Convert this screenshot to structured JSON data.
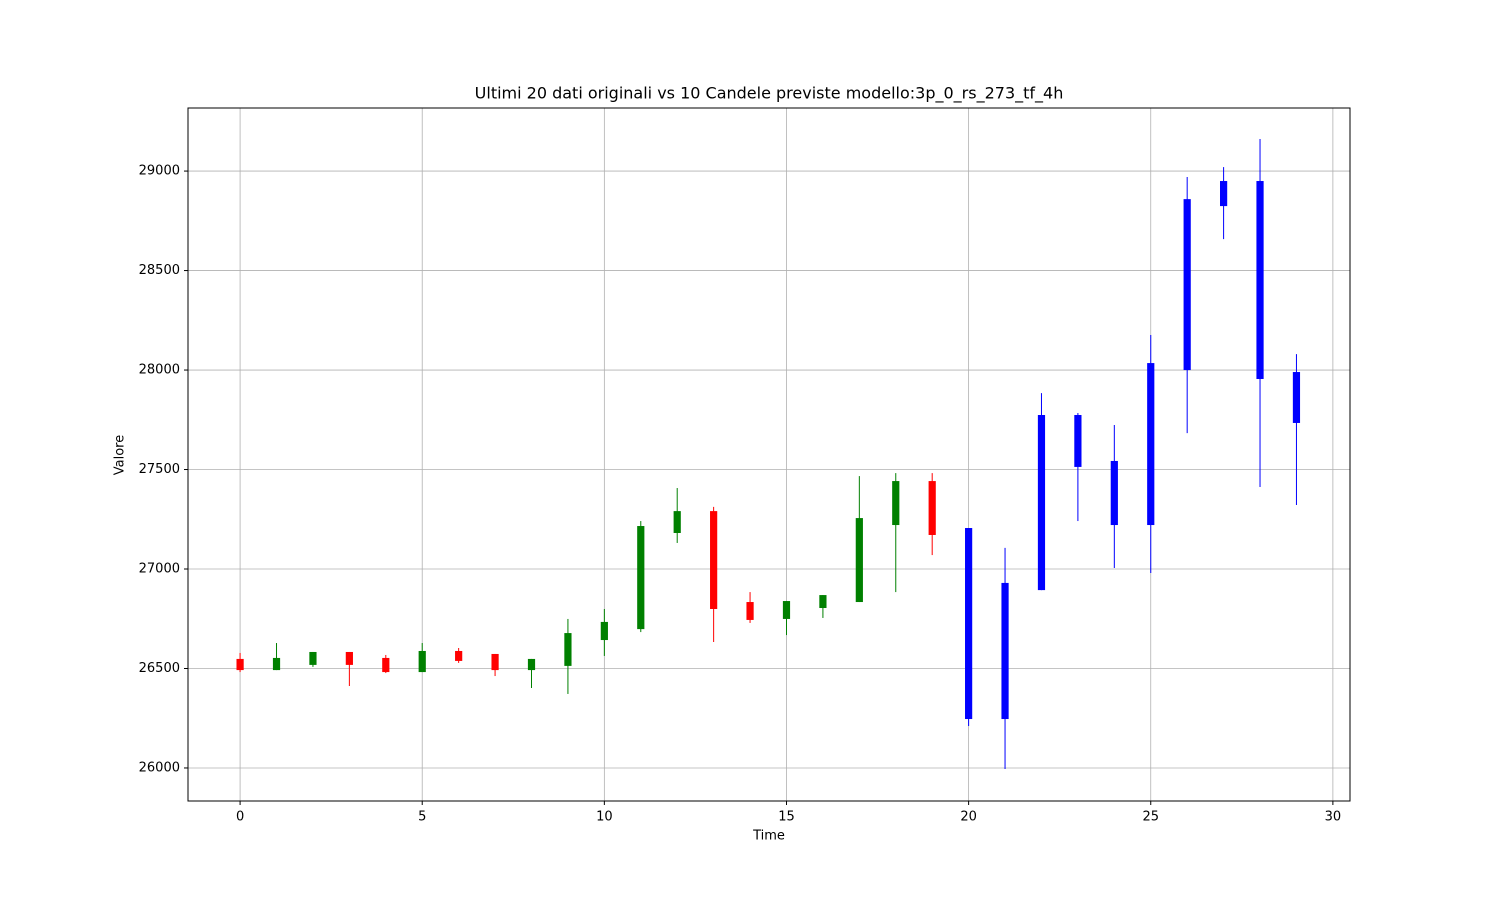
{
  "chart_data": {
    "type": "candlestick",
    "title": "Ultimi 20 dati originali vs 10 Candele previste modello:3p_0_rs_273_tf_4h",
    "xlabel": "Time",
    "ylabel": "Valore",
    "xlim": [
      -1.43,
      30.47
    ],
    "ylim": [
      25834,
      29317
    ],
    "xticks": [
      0,
      5,
      10,
      15,
      20,
      25,
      30
    ],
    "yticks": [
      26000,
      26500,
      27000,
      27500,
      28000,
      28500,
      29000
    ],
    "grid": true,
    "series": [
      {
        "color_up": "green",
        "color_down": "red",
        "x": [
          0,
          1,
          2,
          3,
          4,
          5,
          6,
          7,
          8,
          9,
          10,
          11,
          12,
          13,
          14,
          15,
          16,
          17,
          18,
          19
        ],
        "open": [
          26548,
          26492,
          26518,
          26583,
          26553,
          26482,
          26588,
          26573,
          26492,
          26513,
          26643,
          26698,
          27181,
          27291,
          26834,
          26749,
          26804,
          26834,
          27221,
          27442
        ],
        "high": [
          26578,
          26628,
          26583,
          26583,
          26568,
          26628,
          26603,
          26573,
          26548,
          26749,
          26799,
          27241,
          27407,
          27312,
          26884,
          26839,
          26869,
          27467,
          27482,
          27482
        ],
        "low": [
          26482,
          26492,
          26508,
          26412,
          26477,
          26482,
          26528,
          26462,
          26402,
          26372,
          26563,
          26683,
          27131,
          26633,
          26729,
          26668,
          26754,
          26834,
          26884,
          27070
        ],
        "close": [
          26492,
          26553,
          26583,
          26518,
          26482,
          26588,
          26538,
          26492,
          26548,
          26678,
          26734,
          27216,
          27291,
          26799,
          26744,
          26839,
          26869,
          27256,
          27442,
          27171
        ]
      },
      {
        "color": "blue",
        "x": [
          20,
          21,
          22,
          23,
          24,
          25,
          26,
          27,
          28,
          29
        ],
        "open": [
          27206,
          26246,
          26894,
          27774,
          27221,
          27221,
          28000,
          28824,
          28950,
          27990
        ],
        "high": [
          27206,
          27106,
          27884,
          27784,
          27724,
          28176,
          28970,
          29020,
          29161,
          28080
        ],
        "low": [
          26211,
          25995,
          26894,
          27241,
          27005,
          26980,
          27683,
          28658,
          27412,
          27322
        ],
        "close": [
          26246,
          26930,
          27774,
          27513,
          27543,
          28035,
          28859,
          28950,
          27955,
          27734
        ]
      }
    ]
  }
}
